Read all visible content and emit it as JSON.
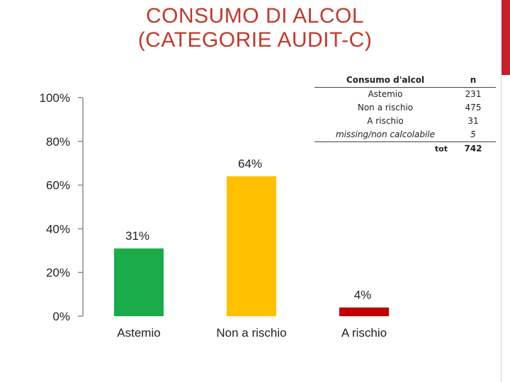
{
  "title_lines": [
    "CONSUMO DI ALCOL",
    "(CATEGORIE AUDIT-C)"
  ],
  "colors": {
    "title": "#c0392b",
    "accent": "#c8202a"
  },
  "chart_data": {
    "type": "bar",
    "categories": [
      "Astemio",
      "Non a rischio",
      "A rischio"
    ],
    "values": [
      31,
      64,
      4
    ],
    "data_labels": [
      "31%",
      "64%",
      "4%"
    ],
    "bar_colors": [
      "#1aab4b",
      "#ffc000",
      "#c00000"
    ],
    "yticks": [
      "0%",
      "20%",
      "40%",
      "60%",
      "80%",
      "100%"
    ],
    "ylim": [
      0,
      100
    ],
    "grid": false,
    "legend": "none"
  },
  "table": {
    "header": {
      "label": "Consumo d'alcol",
      "n": "n"
    },
    "rows": [
      {
        "label": "Astemio",
        "n": "231"
      },
      {
        "label": "Non a rischio",
        "n": "475"
      },
      {
        "label": "A rischio",
        "n": "31"
      },
      {
        "label": "missing/non calcolabile",
        "n": "5"
      }
    ],
    "total": {
      "label": "tot",
      "n": "742"
    }
  }
}
